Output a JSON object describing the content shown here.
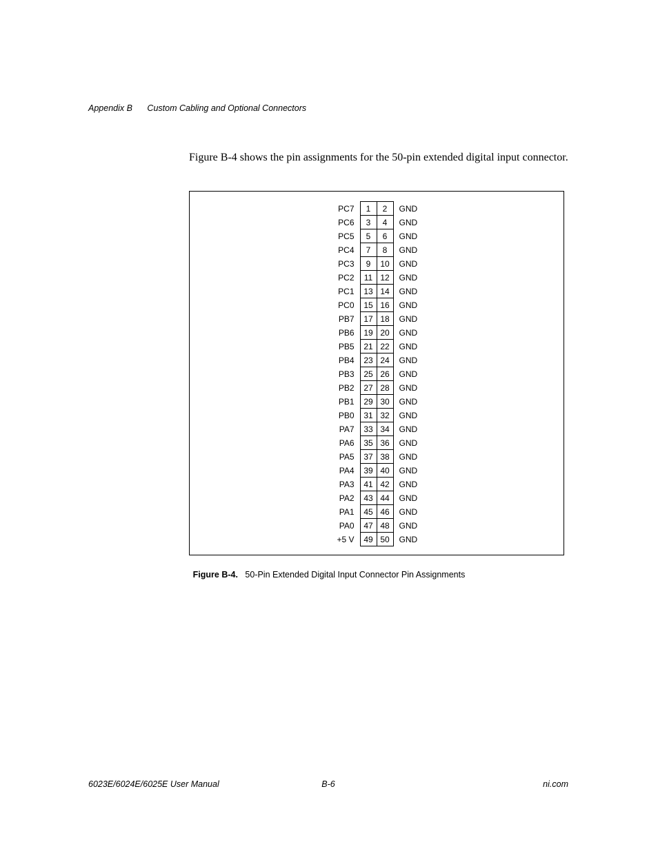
{
  "header": {
    "appendix": "Appendix B",
    "title": "Custom Cabling and Optional Connectors"
  },
  "intro_text": "Figure B-4 shows the pin assignments for the 50-pin extended digital input connector.",
  "pin_rows": [
    {
      "left": "PC7",
      "p1": "1",
      "p2": "2",
      "right": "GND"
    },
    {
      "left": "PC6",
      "p1": "3",
      "p2": "4",
      "right": "GND"
    },
    {
      "left": "PC5",
      "p1": "5",
      "p2": "6",
      "right": "GND"
    },
    {
      "left": "PC4",
      "p1": "7",
      "p2": "8",
      "right": "GND"
    },
    {
      "left": "PC3",
      "p1": "9",
      "p2": "10",
      "right": "GND"
    },
    {
      "left": "PC2",
      "p1": "11",
      "p2": "12",
      "right": "GND"
    },
    {
      "left": "PC1",
      "p1": "13",
      "p2": "14",
      "right": "GND"
    },
    {
      "left": "PC0",
      "p1": "15",
      "p2": "16",
      "right": "GND"
    },
    {
      "left": "PB7",
      "p1": "17",
      "p2": "18",
      "right": "GND"
    },
    {
      "left": "PB6",
      "p1": "19",
      "p2": "20",
      "right": "GND"
    },
    {
      "left": "PB5",
      "p1": "21",
      "p2": "22",
      "right": "GND"
    },
    {
      "left": "PB4",
      "p1": "23",
      "p2": "24",
      "right": "GND"
    },
    {
      "left": "PB3",
      "p1": "25",
      "p2": "26",
      "right": "GND"
    },
    {
      "left": "PB2",
      "p1": "27",
      "p2": "28",
      "right": "GND"
    },
    {
      "left": "PB1",
      "p1": "29",
      "p2": "30",
      "right": "GND"
    },
    {
      "left": "PB0",
      "p1": "31",
      "p2": "32",
      "right": "GND"
    },
    {
      "left": "PA7",
      "p1": "33",
      "p2": "34",
      "right": "GND"
    },
    {
      "left": "PA6",
      "p1": "35",
      "p2": "36",
      "right": "GND"
    },
    {
      "left": "PA5",
      "p1": "37",
      "p2": "38",
      "right": "GND"
    },
    {
      "left": "PA4",
      "p1": "39",
      "p2": "40",
      "right": "GND"
    },
    {
      "left": "PA3",
      "p1": "41",
      "p2": "42",
      "right": "GND"
    },
    {
      "left": "PA2",
      "p1": "43",
      "p2": "44",
      "right": "GND"
    },
    {
      "left": "PA1",
      "p1": "45",
      "p2": "46",
      "right": "GND"
    },
    {
      "left": "PA0",
      "p1": "47",
      "p2": "48",
      "right": "GND"
    },
    {
      "left": "+5 V",
      "p1": "49",
      "p2": "50",
      "right": "GND"
    }
  ],
  "caption": {
    "label": "Figure B-4.",
    "text": "50-Pin Extended Digital Input Connector Pin Assignments"
  },
  "footer": {
    "left": "6023E/6024E/6025E User Manual",
    "center": "B-6",
    "right": "ni.com"
  }
}
